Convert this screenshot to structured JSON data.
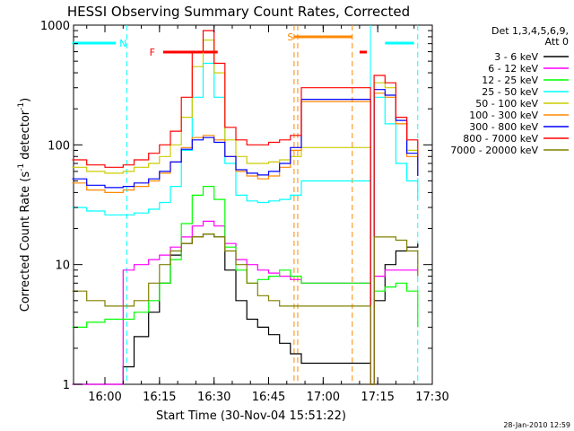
{
  "chart_data": {
    "type": "line",
    "title": "HESSI Observing Summary Count Rates, Corrected",
    "xlabel": "Start Time (30-Nov-04 15:51:22)",
    "ylabel_parts": [
      "Corrected Count Rate (s",
      "-1",
      " detector",
      "-1",
      ")"
    ],
    "y_scale": "log",
    "ylim": [
      1,
      1000
    ],
    "xlim": [
      "15:51:22",
      "17:30:00"
    ],
    "x_ticks": [
      "16:00",
      "16:15",
      "16:30",
      "16:45",
      "17:00",
      "17:15",
      "17:30"
    ],
    "y_ticks": [
      "1",
      "10",
      "100",
      "1000"
    ],
    "legend_header": [
      "Det 1,3,4,5,6,9,",
      "Att 0"
    ],
    "legend_position": "right",
    "series": [
      {
        "name": "3 - 6 keV",
        "color": "#000000",
        "x": [
          "15:51",
          "15:55",
          "16:00",
          "16:05",
          "16:08",
          "16:12",
          "16:15",
          "16:18",
          "16:21",
          "16:24",
          "16:27",
          "16:30",
          "16:33",
          "16:36",
          "16:39",
          "16:42",
          "16:45",
          "16:48",
          "16:51",
          "16:54",
          "17:13",
          "17:14",
          "17:17",
          "17:20",
          "17:23",
          "17:26"
        ],
        "y": [
          1,
          1,
          1,
          1.4,
          2.5,
          4,
          7,
          12,
          15,
          17,
          18,
          17,
          9,
          5,
          3.5,
          3,
          2.6,
          2.2,
          1.8,
          1.5,
          1,
          5,
          10,
          13,
          14,
          15
        ]
      },
      {
        "name": "6 - 12 keV",
        "color": "#ff00ff",
        "x": [
          "15:51",
          "15:55",
          "16:00",
          "16:05",
          "16:08",
          "16:12",
          "16:15",
          "16:18",
          "16:21",
          "16:24",
          "16:27",
          "16:30",
          "16:33",
          "16:36",
          "16:39",
          "16:42",
          "16:45",
          "16:48",
          "16:51",
          "16:54",
          "17:13",
          "17:14",
          "17:17",
          "17:20",
          "17:23",
          "17:26"
        ],
        "y": [
          1,
          1,
          1,
          9,
          10,
          11,
          12,
          14,
          17,
          21,
          23,
          21,
          15,
          11,
          10,
          9,
          8.5,
          8,
          7.5,
          7,
          1,
          8,
          9,
          9,
          9,
          9
        ]
      },
      {
        "name": "12 - 25 keV",
        "color": "#00ff00",
        "x": [
          "15:51",
          "15:55",
          "16:00",
          "16:05",
          "16:08",
          "16:12",
          "16:15",
          "16:18",
          "16:21",
          "16:24",
          "16:27",
          "16:30",
          "16:33",
          "16:36",
          "16:39",
          "16:42",
          "16:45",
          "16:48",
          "16:51",
          "16:54",
          "17:13",
          "17:14",
          "17:17",
          "17:20",
          "17:23",
          "17:26"
        ],
        "y": [
          3,
          3.3,
          3.5,
          3.5,
          4,
          5,
          7,
          11,
          22,
          38,
          45,
          35,
          14,
          9,
          7,
          7.5,
          8,
          9,
          8,
          7,
          1,
          6,
          6.5,
          7,
          6,
          3
        ]
      },
      {
        "name": "25 - 50 keV",
        "color": "#00ffff",
        "x": [
          "15:51",
          "15:55",
          "16:00",
          "16:05",
          "16:08",
          "16:12",
          "16:15",
          "16:18",
          "16:21",
          "16:24",
          "16:27",
          "16:30",
          "16:33",
          "16:36",
          "16:39",
          "16:42",
          "16:45",
          "16:48",
          "16:51",
          "16:54",
          "17:13",
          "17:14",
          "17:17",
          "17:20",
          "17:23",
          "17:26"
        ],
        "y": [
          30,
          28,
          26,
          26,
          27,
          29,
          33,
          45,
          90,
          250,
          480,
          250,
          70,
          38,
          34,
          33,
          34,
          35,
          38,
          50,
          1,
          250,
          150,
          70,
          50,
          35
        ]
      },
      {
        "name": "50 - 100 keV",
        "color": "#cccc00",
        "x": [
          "15:51",
          "15:55",
          "16:00",
          "16:05",
          "16:08",
          "16:12",
          "16:15",
          "16:18",
          "16:21",
          "16:24",
          "16:27",
          "16:30",
          "16:33",
          "16:36",
          "16:39",
          "16:42",
          "16:45",
          "16:48",
          "16:51",
          "16:54",
          "17:13",
          "17:14",
          "17:17",
          "17:20",
          "17:23",
          "17:26"
        ],
        "y": [
          65,
          60,
          58,
          60,
          65,
          70,
          80,
          100,
          170,
          450,
          750,
          400,
          110,
          80,
          70,
          70,
          72,
          75,
          80,
          95,
          1,
          330,
          300,
          150,
          90,
          70
        ]
      },
      {
        "name": "100 - 300 keV",
        "color": "#ff8800",
        "x": [
          "15:51",
          "15:55",
          "16:00",
          "16:05",
          "16:08",
          "16:12",
          "16:15",
          "16:18",
          "16:21",
          "16:24",
          "16:27",
          "16:30",
          "16:33",
          "16:36",
          "16:39",
          "16:42",
          "16:45",
          "16:48",
          "16:51",
          "16:54",
          "17:13",
          "17:14",
          "17:17",
          "17:20",
          "17:23",
          "17:26"
        ],
        "y": [
          48,
          42,
          40,
          42,
          45,
          50,
          58,
          72,
          95,
          115,
          120,
          110,
          80,
          60,
          55,
          52,
          55,
          65,
          90,
          230,
          1,
          270,
          250,
          150,
          80,
          55
        ]
      },
      {
        "name": "300 - 800 keV",
        "color": "#0000ff",
        "x": [
          "15:51",
          "15:55",
          "16:00",
          "16:05",
          "16:08",
          "16:12",
          "16:15",
          "16:18",
          "16:21",
          "16:24",
          "16:27",
          "16:30",
          "16:33",
          "16:36",
          "16:39",
          "16:42",
          "16:45",
          "16:48",
          "16:51",
          "16:54",
          "17:13",
          "17:14",
          "17:17",
          "17:20",
          "17:23",
          "17:26"
        ],
        "y": [
          52,
          46,
          44,
          45,
          48,
          52,
          60,
          72,
          92,
          110,
          115,
          105,
          80,
          62,
          58,
          56,
          60,
          70,
          95,
          240,
          1,
          290,
          260,
          160,
          85,
          55
        ]
      },
      {
        "name": "800 - 7000 keV",
        "color": "#ff0000",
        "x": [
          "15:51",
          "15:55",
          "16:00",
          "16:05",
          "16:08",
          "16:12",
          "16:15",
          "16:18",
          "16:21",
          "16:24",
          "16:27",
          "16:30",
          "16:33",
          "16:36",
          "16:39",
          "16:42",
          "16:45",
          "16:48",
          "16:51",
          "16:54",
          "17:13",
          "17:14",
          "17:17",
          "17:20",
          "17:23",
          "17:26"
        ],
        "y": [
          75,
          68,
          65,
          68,
          75,
          85,
          100,
          130,
          250,
          600,
          900,
          480,
          140,
          110,
          100,
          100,
          105,
          110,
          120,
          300,
          1,
          380,
          330,
          170,
          110,
          80
        ]
      },
      {
        "name": "7000 - 20000 keV",
        "color": "#808000",
        "x": [
          "15:51",
          "15:55",
          "16:00",
          "16:05",
          "16:08",
          "16:12",
          "16:15",
          "16:18",
          "16:21",
          "16:24",
          "16:27",
          "16:30",
          "16:33",
          "16:36",
          "16:39",
          "16:42",
          "16:45",
          "16:48",
          "16:51",
          "16:54",
          "17:13",
          "17:14",
          "17:17",
          "17:20",
          "17:23",
          "17:26"
        ],
        "y": [
          6,
          5,
          4.5,
          4.5,
          5,
          7,
          10,
          13,
          15,
          17,
          18,
          17,
          13,
          10,
          7,
          5.5,
          5,
          4.5,
          4.5,
          4.5,
          1,
          17,
          17,
          16,
          13,
          8
        ]
      }
    ],
    "flags": [
      {
        "label": "N",
        "color": "#00ffff",
        "label_at": "16:05",
        "segments": [
          [
            "15:51",
            "16:03"
          ],
          [
            "17:17",
            "17:25"
          ]
        ],
        "dashed_at": [
          "16:06",
          "17:26"
        ],
        "solid_at": [
          "17:13"
        ]
      },
      {
        "label": "F",
        "color": "#ff0000",
        "label_at": "16:13",
        "segments": [
          [
            "16:16",
            "16:31"
          ],
          [
            "17:10",
            "17:12"
          ]
        ]
      },
      {
        "label": "S",
        "color": "#ff8800",
        "label_at": "16:51",
        "segments": [
          [
            "16:52",
            "17:08"
          ]
        ],
        "dashed_at": [
          "16:52",
          "16:53",
          "17:08"
        ]
      }
    ]
  },
  "timestamp": "28-Jan-2010 12:59"
}
